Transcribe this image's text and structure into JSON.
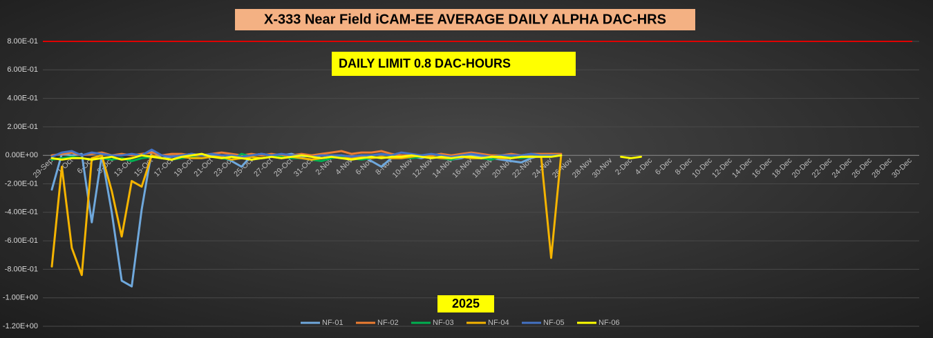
{
  "chart_data": {
    "type": "line",
    "title": "X-333 Near Field iCAM-EE AVERAGE DAILY ALPHA DAC-HRS",
    "annotation": "DAILY LIMIT 0.8 DAC-HOURS",
    "x_label": "2025",
    "limit": 0.8,
    "limit_color": "#e00000",
    "grid": true,
    "legend": "bottom",
    "ylim": [
      -1.2,
      0.8
    ],
    "yticks": [
      {
        "value": 0.8,
        "label": "8.00E-01"
      },
      {
        "value": 0.6,
        "label": "6.00E-01"
      },
      {
        "value": 0.4,
        "label": "4.00E-01"
      },
      {
        "value": 0.2,
        "label": "2.00E-01"
      },
      {
        "value": 0,
        "label": "0.00E+00"
      },
      {
        "value": -0.2,
        "label": "-2.00E-01"
      },
      {
        "value": -0.4,
        "label": "-4.00E-01"
      },
      {
        "value": -0.6,
        "label": "-6.00E-01"
      },
      {
        "value": -0.8,
        "label": "-8.00E-01"
      },
      {
        "value": -1.0,
        "label": "-1.00E+00"
      },
      {
        "value": -1.2,
        "label": "-1.20E+00"
      }
    ],
    "categories": [
      "29-Sep",
      null,
      "1-Oct",
      null,
      "6-Oct",
      null,
      "8-Oct",
      null,
      "13-Oct",
      null,
      "15-Oct",
      null,
      "17-Oct",
      null,
      "19-Oct",
      null,
      "21-Oct",
      null,
      "23-Oct",
      null,
      "25-Oct",
      null,
      "27-Oct",
      null,
      "29-Oct",
      null,
      "31-Oct",
      null,
      "2-Nov",
      null,
      "4-Nov",
      null,
      "6-Nov",
      null,
      "8-Nov",
      null,
      "10-Nov",
      null,
      "12-Nov",
      null,
      "14-Nov",
      null,
      "16-Nov",
      null,
      "18-Nov",
      null,
      "20-Nov",
      null,
      "22-Nov",
      null,
      "24-Nov",
      null,
      "26-Nov",
      null,
      "28-Nov",
      null,
      "30-Nov",
      null,
      "2-Dec",
      null,
      "4-Dec",
      null,
      "6-Dec",
      null,
      "8-Dec",
      null,
      "10-Dec",
      null,
      "12-Dec",
      null,
      "14-Dec",
      null,
      "16-Dec",
      null,
      "18-Dec",
      null,
      "20-Dec",
      null,
      "22-Dec",
      null,
      "24-Dec",
      null,
      "26-Dec",
      null,
      "28-Dec",
      null,
      "30-Dec",
      null
    ],
    "series": [
      {
        "name": "NF-01",
        "color": "#6fa8dc",
        "values": [
          -0.24,
          0.01,
          0.0,
          0.01,
          -0.47,
          0.0,
          -0.4,
          -0.88,
          -0.92,
          -0.38,
          0.03,
          -0.02,
          -0.01,
          0.0,
          0.01,
          0.0,
          0.0,
          -0.01,
          -0.04,
          -0.08,
          0.0,
          0.01,
          0.0,
          0.0,
          0.01,
          -0.01,
          0.0,
          -0.02,
          -0.01,
          0.0,
          -0.01,
          0.0,
          -0.04,
          -0.08,
          -0.02,
          0.0,
          -0.01,
          -0.02,
          0.0,
          0.01,
          -0.03,
          -0.02,
          0.0,
          -0.01,
          -0.02,
          -0.03,
          -0.04,
          -0.05,
          -0.02,
          0.0,
          0.01,
          0.0,
          null,
          null,
          null,
          null,
          null,
          null,
          null,
          null,
          null,
          null,
          null,
          null,
          null,
          null,
          null,
          null,
          null,
          null,
          null,
          null,
          null,
          null,
          null,
          null,
          null,
          null,
          null,
          null,
          null,
          null,
          null,
          null,
          null,
          null,
          null,
          null
        ]
      },
      {
        "name": "NF-02",
        "color": "#ed7d31",
        "values": [
          0.0,
          0.01,
          0.02,
          0.0,
          0.01,
          0.02,
          0.0,
          0.01,
          0.0,
          0.01,
          0.02,
          0.0,
          0.01,
          0.01,
          0.0,
          0.0,
          0.01,
          0.02,
          0.01,
          0.0,
          0.01,
          0.0,
          0.01,
          0.0,
          0.0,
          0.01,
          0.0,
          0.01,
          0.02,
          0.03,
          0.01,
          0.02,
          0.02,
          0.03,
          0.01,
          0.0,
          0.0,
          -0.01,
          0.0,
          0.01,
          0.0,
          0.01,
          0.02,
          0.01,
          0.0,
          0.0,
          0.01,
          0.0,
          0.01,
          0.01,
          0.01,
          0.01,
          null,
          null,
          null,
          null,
          null,
          null,
          null,
          null,
          null,
          null,
          null,
          null,
          null,
          null,
          null,
          null,
          null,
          null,
          null,
          null,
          null,
          null,
          null,
          null,
          null,
          null,
          null,
          null,
          null,
          null,
          null,
          null,
          null,
          null,
          null,
          null
        ]
      },
      {
        "name": "NF-03",
        "color": "#00b050",
        "values": [
          -0.03,
          -0.02,
          -0.01,
          -0.02,
          -0.03,
          -0.02,
          -0.03,
          -0.02,
          -0.04,
          -0.02,
          -0.01,
          -0.02,
          -0.03,
          -0.02,
          -0.01,
          -0.02,
          -0.01,
          -0.02,
          -0.03,
          0.01,
          -0.01,
          -0.02,
          -0.01,
          -0.01,
          -0.02,
          -0.02,
          -0.03,
          -0.04,
          -0.02,
          -0.01,
          -0.02,
          -0.03,
          -0.02,
          -0.01,
          -0.02,
          -0.01,
          -0.02,
          -0.01,
          -0.01,
          -0.02,
          -0.03,
          -0.01,
          -0.02,
          -0.02,
          -0.03,
          -0.01,
          -0.01,
          -0.02,
          -0.01,
          0.0,
          0.0,
          0.0,
          null,
          null,
          null,
          null,
          null,
          null,
          null,
          null,
          null,
          null,
          null,
          null,
          null,
          null,
          null,
          null,
          null,
          null,
          null,
          null,
          null,
          null,
          null,
          null,
          null,
          null,
          null,
          null,
          null,
          null,
          null,
          null,
          null,
          null,
          null,
          null
        ]
      },
      {
        "name": "NF-04",
        "color": "#f5b400",
        "values": [
          -0.78,
          -0.08,
          -0.65,
          -0.84,
          -0.02,
          0.0,
          -0.25,
          -0.57,
          -0.18,
          -0.22,
          0.0,
          -0.02,
          -0.03,
          -0.01,
          -0.02,
          -0.02,
          -0.01,
          -0.01,
          -0.03,
          -0.02,
          -0.01,
          -0.02,
          -0.01,
          -0.02,
          -0.01,
          -0.02,
          -0.03,
          -0.02,
          -0.01,
          -0.02,
          -0.02,
          -0.01,
          -0.02,
          -0.01,
          -0.02,
          -0.02,
          -0.01,
          0.0,
          -0.01,
          -0.02,
          -0.02,
          -0.01,
          -0.02,
          -0.02,
          -0.01,
          -0.02,
          -0.02,
          -0.01,
          -0.01,
          -0.01,
          -0.72,
          0.0,
          null,
          null,
          null,
          null,
          null,
          null,
          null,
          null,
          null,
          null,
          null,
          null,
          null,
          null,
          null,
          null,
          null,
          null,
          null,
          null,
          null,
          null,
          null,
          null,
          null,
          null,
          null,
          null,
          null,
          null,
          null,
          null,
          null,
          null,
          null,
          null
        ]
      },
      {
        "name": "NF-05",
        "color": "#4472c4",
        "values": [
          -0.01,
          0.02,
          0.03,
          0.0,
          0.02,
          0.01,
          0.0,
          0.0,
          0.01,
          0.0,
          0.04,
          0.0,
          -0.01,
          0.0,
          0.01,
          0.0,
          0.01,
          0.0,
          0.0,
          -0.01,
          0.0,
          0.01,
          0.0,
          0.01,
          0.0,
          0.0,
          -0.01,
          0.0,
          0.0,
          0.0,
          -0.01,
          0.0,
          0.0,
          0.01,
          0.0,
          0.02,
          0.01,
          0.0,
          0.01,
          0.0,
          -0.01,
          0.0,
          0.01,
          0.0,
          -0.01,
          0.0,
          0.0,
          0.0,
          0.01,
          0.0,
          0.0,
          0.0,
          null,
          null,
          null,
          null,
          null,
          null,
          null,
          null,
          null,
          null,
          null,
          null,
          null,
          null,
          null,
          null,
          null,
          null,
          null,
          null,
          null,
          null,
          null,
          null,
          null,
          null,
          null,
          null,
          null,
          null,
          null,
          null,
          null,
          null,
          null,
          null
        ]
      },
      {
        "name": "NF-06",
        "color": "#ffff00",
        "values": [
          -0.02,
          -0.03,
          -0.02,
          -0.02,
          -0.03,
          -0.02,
          -0.01,
          -0.03,
          -0.02,
          0.0,
          -0.01,
          -0.02,
          -0.03,
          -0.01,
          0.0,
          0.01,
          -0.01,
          -0.02,
          -0.01,
          -0.02,
          -0.03,
          -0.02,
          -0.01,
          -0.02,
          -0.01,
          0.0,
          -0.01,
          -0.02,
          -0.01,
          -0.02,
          -0.03,
          -0.02,
          -0.01,
          -0.02,
          -0.01,
          -0.01,
          0.0,
          -0.01,
          -0.02,
          -0.01,
          -0.02,
          -0.01,
          -0.01,
          -0.02,
          -0.01,
          -0.01,
          -0.02,
          -0.01,
          -0.01,
          -0.01,
          -0.01,
          0.0,
          null,
          null,
          null,
          null,
          null,
          -0.01,
          -0.02,
          -0.01,
          null,
          null,
          null,
          null,
          null,
          null,
          null,
          null,
          null,
          null,
          null,
          null,
          null,
          null,
          null,
          null,
          null,
          null,
          null,
          null,
          null,
          null,
          null,
          null,
          null,
          null,
          null,
          null
        ]
      }
    ]
  }
}
